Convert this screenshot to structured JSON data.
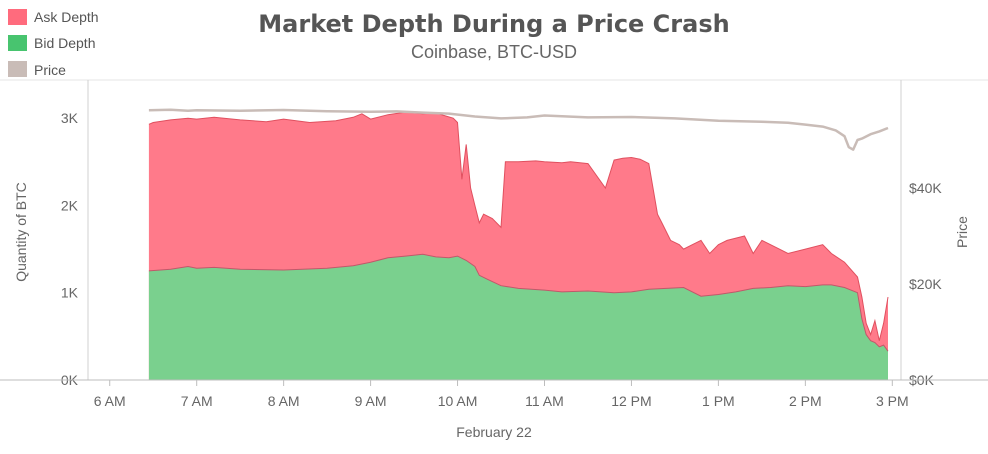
{
  "chart_data": {
    "type": "area",
    "title": "Market Depth During a Price Crash",
    "subtitle": "Coinbase, BTC-USD",
    "xlabel": "February 22",
    "ylabel": "Quantity of BTC",
    "y2label": "Price",
    "x_ticks": [
      "6 AM",
      "7 AM",
      "8 AM",
      "9 AM",
      "10 AM",
      "11 AM",
      "12 PM",
      "1 PM",
      "2 PM",
      "3 PM"
    ],
    "x_tick_hours": [
      6,
      7,
      8,
      9,
      10,
      11,
      12,
      13,
      14,
      15
    ],
    "y_ticks": [
      "0K",
      "1K",
      "2K",
      "3K"
    ],
    "y_tick_values": [
      0,
      1000,
      2000,
      3000
    ],
    "y2_ticks": [
      "$0K",
      "$20K",
      "$40K"
    ],
    "y2_tick_values": [
      0,
      20000,
      40000
    ],
    "xlim": [
      5.75,
      15.1
    ],
    "ylim": [
      0,
      3300
    ],
    "y2lim": [
      0,
      60000
    ],
    "legend": "top-left",
    "series": [
      {
        "name": "Ask Depth",
        "color": "#ff6b7d",
        "note": "stacked on top of Bid Depth; values are cumulative top of stack (BTC)",
        "x": [
          6.45,
          6.5,
          6.7,
          6.9,
          7.0,
          7.2,
          7.5,
          7.8,
          8.0,
          8.3,
          8.6,
          8.8,
          8.9,
          9.0,
          9.2,
          9.4,
          9.6,
          9.75,
          9.85,
          9.95,
          10.0,
          10.05,
          10.1,
          10.15,
          10.2,
          10.25,
          10.3,
          10.4,
          10.5,
          10.55,
          10.7,
          10.9,
          11.0,
          11.2,
          11.3,
          11.5,
          11.7,
          11.8,
          11.9,
          12.0,
          12.1,
          12.2,
          12.3,
          12.35,
          12.45,
          12.55,
          12.6,
          12.7,
          12.8,
          12.9,
          13.0,
          13.1,
          13.3,
          13.4,
          13.5,
          13.7,
          13.8,
          14.0,
          14.2,
          14.3,
          14.45,
          14.6,
          14.65,
          14.7,
          14.75,
          14.8,
          14.85,
          14.9,
          14.95
        ],
        "values": [
          2930,
          2950,
          2980,
          3000,
          2990,
          3010,
          2980,
          2960,
          2990,
          2950,
          2970,
          3010,
          3050,
          2990,
          3040,
          3070,
          3050,
          3060,
          3030,
          3000,
          2950,
          2300,
          2700,
          2200,
          2000,
          1800,
          1900,
          1850,
          1750,
          2500,
          2500,
          2510,
          2500,
          2490,
          2500,
          2480,
          2200,
          2520,
          2540,
          2550,
          2530,
          2480,
          1900,
          1800,
          1600,
          1550,
          1500,
          1550,
          1600,
          1450,
          1550,
          1600,
          1650,
          1450,
          1600,
          1500,
          1450,
          1500,
          1550,
          1450,
          1350,
          1180,
          950,
          650,
          520,
          680,
          450,
          650,
          950
        ]
      },
      {
        "name": "Bid Depth",
        "color": "#48c46f",
        "x": [
          6.45,
          6.7,
          6.9,
          7.0,
          7.2,
          7.5,
          8.0,
          8.5,
          8.8,
          9.0,
          9.2,
          9.4,
          9.6,
          9.75,
          9.9,
          10.0,
          10.1,
          10.2,
          10.25,
          10.35,
          10.5,
          10.7,
          11.0,
          11.2,
          11.5,
          11.8,
          12.0,
          12.2,
          12.4,
          12.6,
          12.8,
          13.0,
          13.2,
          13.4,
          13.6,
          13.8,
          14.0,
          14.2,
          14.3,
          14.45,
          14.6,
          14.65,
          14.7,
          14.75,
          14.8,
          14.85,
          14.9,
          14.95
        ],
        "values": [
          1250,
          1270,
          1300,
          1280,
          1290,
          1270,
          1260,
          1280,
          1310,
          1350,
          1400,
          1420,
          1440,
          1410,
          1400,
          1420,
          1370,
          1300,
          1200,
          1150,
          1080,
          1050,
          1030,
          1010,
          1020,
          1000,
          1010,
          1040,
          1050,
          1060,
          960,
          980,
          1010,
          1050,
          1060,
          1080,
          1070,
          1090,
          1090,
          1060,
          1000,
          700,
          520,
          450,
          430,
          380,
          400,
          330
        ]
      },
      {
        "name": "Price",
        "color": "#c9bcb7",
        "axis": "right",
        "x": [
          6.45,
          6.7,
          6.9,
          7.0,
          7.5,
          8.0,
          8.5,
          9.0,
          9.3,
          9.6,
          9.9,
          10.2,
          10.5,
          10.8,
          11.0,
          11.5,
          12.0,
          12.5,
          13.0,
          13.5,
          13.8,
          14.0,
          14.2,
          14.35,
          14.45,
          14.5,
          14.55,
          14.6,
          14.65,
          14.75,
          14.85,
          14.95
        ],
        "values": [
          56200,
          56300,
          56100,
          56200,
          56100,
          56250,
          56000,
          55900,
          55950,
          55700,
          55500,
          54900,
          54500,
          54700,
          55100,
          54700,
          54800,
          54500,
          54000,
          53800,
          53600,
          53200,
          52800,
          52000,
          50800,
          48500,
          48000,
          50000,
          50300,
          51200,
          51800,
          52500
        ]
      }
    ]
  }
}
